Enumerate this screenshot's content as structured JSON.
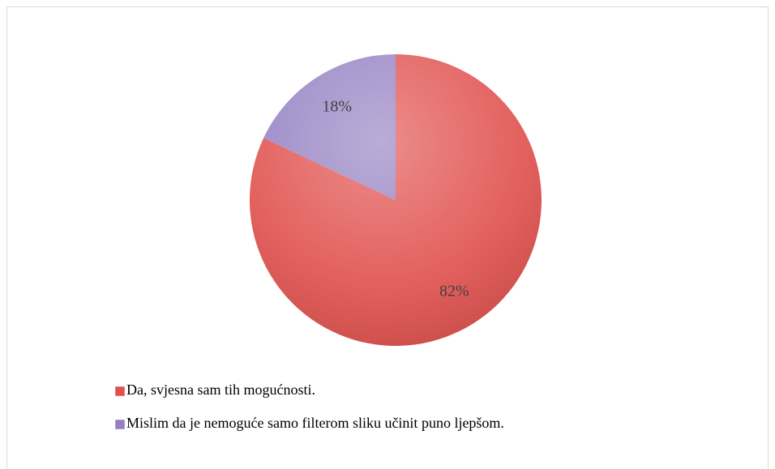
{
  "chart_data": {
    "type": "pie",
    "categories": [
      "Da, svjesna sam tih mogućnosti.",
      "Mislim da je nemoguće samo filterom sliku učinit puno ljepšom."
    ],
    "values": [
      82,
      18
    ],
    "value_labels": [
      "82%",
      "18%"
    ],
    "colors": [
      "#e0504d",
      "#9580c2"
    ],
    "legend": "bottom"
  }
}
